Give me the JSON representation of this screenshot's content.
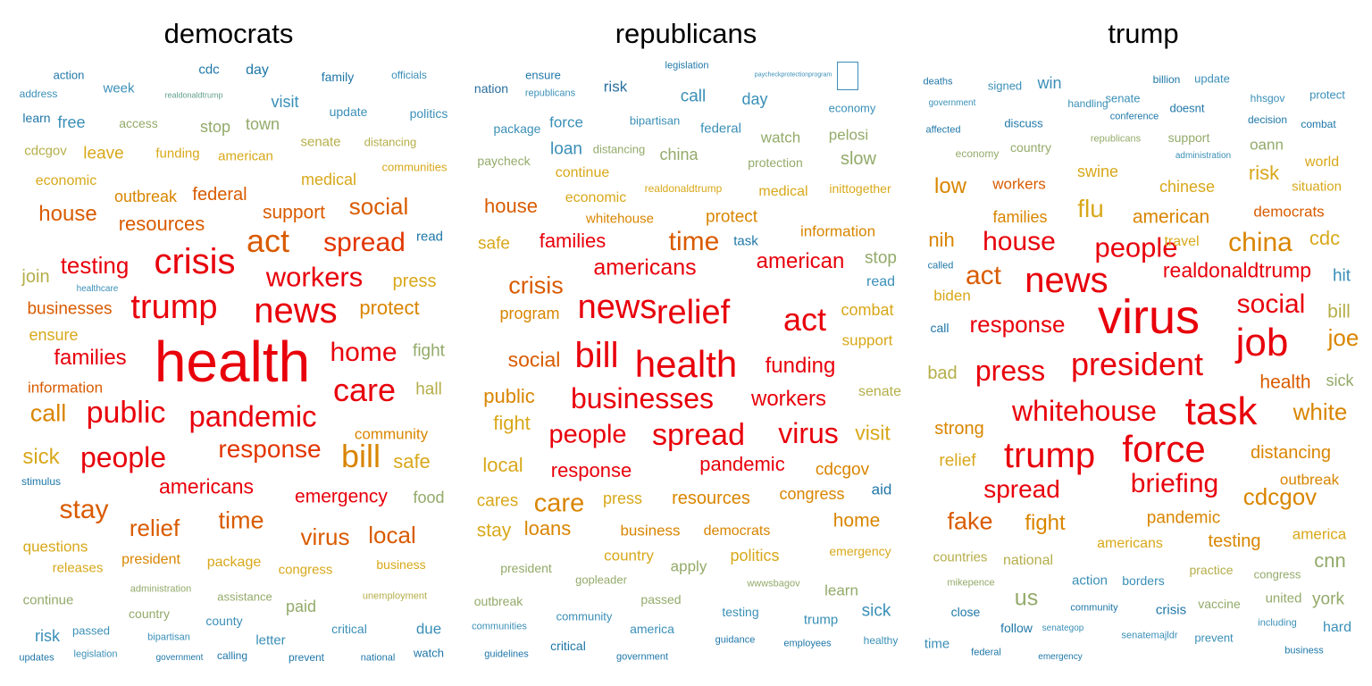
{
  "palette": [
    "#e8000b",
    "#e23500",
    "#d95b00",
    "#d98500",
    "#d8a81a",
    "#b5ae4a",
    "#93aa6a",
    "#63a08f",
    "#3a8fb7",
    "#1f77a8",
    "#2a6f9e"
  ],
  "panels": [
    {
      "title": "democrats",
      "words": [
        {
          "t": "action",
          "c": 9
        },
        {
          "t": "cdc",
          "c": 9
        },
        {
          "t": "day",
          "c": 9
        },
        {
          "t": "family",
          "c": 9
        },
        {
          "t": "officials",
          "c": 8
        },
        {
          "t": "address",
          "c": 8
        },
        {
          "t": "week",
          "c": 8
        },
        {
          "t": "realdonaldtrump",
          "c": 7
        },
        {
          "t": "visit",
          "c": 8
        },
        {
          "t": "update",
          "c": 8
        },
        {
          "t": "politics",
          "c": 8
        },
        {
          "t": "learn",
          "c": 9
        },
        {
          "t": "free",
          "c": 8
        },
        {
          "t": "access",
          "c": 6
        },
        {
          "t": "stop",
          "c": 6
        },
        {
          "t": "town",
          "c": 6
        },
        {
          "t": "senate",
          "c": 5
        },
        {
          "t": "distancing",
          "c": 5
        },
        {
          "t": "cdcgov",
          "c": 5
        },
        {
          "t": "leave",
          "c": 4
        },
        {
          "t": "funding",
          "c": 4
        },
        {
          "t": "american",
          "c": 4
        },
        {
          "t": "communities",
          "c": 4
        },
        {
          "t": "economic",
          "c": 4
        },
        {
          "t": "medical",
          "c": 4
        },
        {
          "t": "outbreak",
          "c": 3
        },
        {
          "t": "federal",
          "c": 2
        },
        {
          "t": "house",
          "c": 2
        },
        {
          "t": "resources",
          "c": 2
        },
        {
          "t": "support",
          "c": 2
        },
        {
          "t": "social",
          "c": 2
        },
        {
          "t": "act",
          "c": 2
        },
        {
          "t": "spread",
          "c": 1
        },
        {
          "t": "read",
          "c": 9
        },
        {
          "t": "testing",
          "c": 0
        },
        {
          "t": "crisis",
          "c": 0
        },
        {
          "t": "join",
          "c": 5
        },
        {
          "t": "workers",
          "c": 0
        },
        {
          "t": "healthcare",
          "c": 8
        },
        {
          "t": "press",
          "c": 4
        },
        {
          "t": "trump",
          "c": 0
        },
        {
          "t": "news",
          "c": 0
        },
        {
          "t": "businesses",
          "c": 2
        },
        {
          "t": "protect",
          "c": 3
        },
        {
          "t": "ensure",
          "c": 4
        },
        {
          "t": "health",
          "c": 0
        },
        {
          "t": "home",
          "c": 0
        },
        {
          "t": "families",
          "c": 0
        },
        {
          "t": "fight",
          "c": 6
        },
        {
          "t": "information",
          "c": 2
        },
        {
          "t": "care",
          "c": 0
        },
        {
          "t": "hall",
          "c": 5
        },
        {
          "t": "call",
          "c": 3
        },
        {
          "t": "public",
          "c": 0
        },
        {
          "t": "pandemic",
          "c": 0
        },
        {
          "t": "community",
          "c": 3
        },
        {
          "t": "response",
          "c": 1
        },
        {
          "t": "sick",
          "c": 4
        },
        {
          "t": "people",
          "c": 0
        },
        {
          "t": "bill",
          "c": 3
        },
        {
          "t": "safe",
          "c": 4
        },
        {
          "t": "stimulus",
          "c": 9
        },
        {
          "t": "americans",
          "c": 0
        },
        {
          "t": "stay",
          "c": 2
        },
        {
          "t": "emergency",
          "c": 0
        },
        {
          "t": "food",
          "c": 6
        },
        {
          "t": "relief",
          "c": 2
        },
        {
          "t": "time",
          "c": 2
        },
        {
          "t": "questions",
          "c": 4
        },
        {
          "t": "virus",
          "c": 2
        },
        {
          "t": "local",
          "c": 2
        },
        {
          "t": "releases",
          "c": 4
        },
        {
          "t": "president",
          "c": 3
        },
        {
          "t": "package",
          "c": 4
        },
        {
          "t": "congress",
          "c": 4
        },
        {
          "t": "business",
          "c": 4
        },
        {
          "t": "administration",
          "c": 6
        },
        {
          "t": "assistance",
          "c": 6
        },
        {
          "t": "unemployment",
          "c": 5
        },
        {
          "t": "continue",
          "c": 6
        },
        {
          "t": "country",
          "c": 6
        },
        {
          "t": "paid",
          "c": 6
        },
        {
          "t": "county",
          "c": 8
        },
        {
          "t": "critical",
          "c": 8
        },
        {
          "t": "due",
          "c": 8
        },
        {
          "t": "risk",
          "c": 8
        },
        {
          "t": "passed",
          "c": 8
        },
        {
          "t": "bipartisan",
          "c": 8
        },
        {
          "t": "letter",
          "c": 8
        },
        {
          "t": "updates",
          "c": 9
        },
        {
          "t": "legislation",
          "c": 8
        },
        {
          "t": "government",
          "c": 9
        },
        {
          "t": "calling",
          "c": 9
        },
        {
          "t": "prevent",
          "c": 9
        },
        {
          "t": "national",
          "c": 9
        },
        {
          "t": "watch",
          "c": 9
        }
      ]
    },
    {
      "title": "republicans",
      "words": [
        {
          "t": "legislation",
          "c": 9
        },
        {
          "t": "ensure",
          "c": 9
        },
        {
          "t": "paycheckprotectionprogram",
          "c": 8
        },
        {
          "t": "nation",
          "c": 10
        },
        {
          "t": "republicans",
          "c": 8
        },
        {
          "t": "risk",
          "c": 10
        },
        {
          "t": "call",
          "c": 8
        },
        {
          "t": "day",
          "c": 8
        },
        {
          "t": "economy",
          "c": 8
        },
        {
          "t": "package",
          "c": 8
        },
        {
          "t": "force",
          "c": 8
        },
        {
          "t": "bipartisan",
          "c": 8
        },
        {
          "t": "federal",
          "c": 8
        },
        {
          "t": "watch",
          "c": 6
        },
        {
          "t": "pelosi",
          "c": 6
        },
        {
          "t": "loan",
          "c": 8
        },
        {
          "t": "distancing",
          "c": 6
        },
        {
          "t": "china",
          "c": 6
        },
        {
          "t": "slow",
          "c": 6
        },
        {
          "t": "paycheck",
          "c": 6
        },
        {
          "t": "protection",
          "c": 6
        },
        {
          "t": "continue",
          "c": 4
        },
        {
          "t": "realdonaldtrump",
          "c": 4
        },
        {
          "t": "medical",
          "c": 4
        },
        {
          "t": "inittogether",
          "c": 4
        },
        {
          "t": "economic",
          "c": 4
        },
        {
          "t": "house",
          "c": 2
        },
        {
          "t": "whitehouse",
          "c": 3
        },
        {
          "t": "protect",
          "c": 3
        },
        {
          "t": "information",
          "c": 3
        },
        {
          "t": "time",
          "c": 2
        },
        {
          "t": "task",
          "c": 9
        },
        {
          "t": "safe",
          "c": 4
        },
        {
          "t": "families",
          "c": 0
        },
        {
          "t": "stop",
          "c": 6
        },
        {
          "t": "american",
          "c": 0
        },
        {
          "t": "americans",
          "c": 0
        },
        {
          "t": "read",
          "c": 8
        },
        {
          "t": "crisis",
          "c": 2
        },
        {
          "t": "combat",
          "c": 4
        },
        {
          "t": "program",
          "c": 3
        },
        {
          "t": "news",
          "c": 0
        },
        {
          "t": "relief",
          "c": 0
        },
        {
          "t": "act",
          "c": 0
        },
        {
          "t": "support",
          "c": 4
        },
        {
          "t": "social",
          "c": 2
        },
        {
          "t": "bill",
          "c": 0
        },
        {
          "t": "health",
          "c": 0
        },
        {
          "t": "funding",
          "c": 0
        },
        {
          "t": "public",
          "c": 3
        },
        {
          "t": "businesses",
          "c": 0
        },
        {
          "t": "workers",
          "c": 0
        },
        {
          "t": "senate",
          "c": 5
        },
        {
          "t": "fight",
          "c": 4
        },
        {
          "t": "people",
          "c": 0
        },
        {
          "t": "spread",
          "c": 0
        },
        {
          "t": "virus",
          "c": 0
        },
        {
          "t": "visit",
          "c": 4
        },
        {
          "t": "local",
          "c": 4
        },
        {
          "t": "response",
          "c": 0
        },
        {
          "t": "pandemic",
          "c": 0
        },
        {
          "t": "cdcgov",
          "c": 3
        },
        {
          "t": "aid",
          "c": 9
        },
        {
          "t": "cares",
          "c": 4
        },
        {
          "t": "care",
          "c": 3
        },
        {
          "t": "press",
          "c": 4
        },
        {
          "t": "resources",
          "c": 3
        },
        {
          "t": "congress",
          "c": 3
        },
        {
          "t": "home",
          "c": 3
        },
        {
          "t": "stay",
          "c": 4
        },
        {
          "t": "loans",
          "c": 3
        },
        {
          "t": "business",
          "c": 3
        },
        {
          "t": "democrats",
          "c": 3
        },
        {
          "t": "country",
          "c": 4
        },
        {
          "t": "politics",
          "c": 4
        },
        {
          "t": "emergency",
          "c": 4
        },
        {
          "t": "president",
          "c": 6
        },
        {
          "t": "apply",
          "c": 6
        },
        {
          "t": "gopleader",
          "c": 6
        },
        {
          "t": "wwwsbagov",
          "c": 6
        },
        {
          "t": "learn",
          "c": 6
        },
        {
          "t": "outbreak",
          "c": 6
        },
        {
          "t": "passed",
          "c": 6
        },
        {
          "t": "sick",
          "c": 8
        },
        {
          "t": "communities",
          "c": 8
        },
        {
          "t": "community",
          "c": 8
        },
        {
          "t": "america",
          "c": 8
        },
        {
          "t": "testing",
          "c": 8
        },
        {
          "t": "trump",
          "c": 8
        },
        {
          "t": "critical",
          "c": 9
        },
        {
          "t": "guidance",
          "c": 9
        },
        {
          "t": "employees",
          "c": 9
        },
        {
          "t": "healthy",
          "c": 8
        },
        {
          "t": "guidelines",
          "c": 9
        },
        {
          "t": "government",
          "c": 9
        }
      ]
    },
    {
      "title": "trump",
      "words": [
        {
          "t": "deaths",
          "c": 9
        },
        {
          "t": "signed",
          "c": 8
        },
        {
          "t": "win",
          "c": 8
        },
        {
          "t": "billion",
          "c": 9
        },
        {
          "t": "update",
          "c": 8
        },
        {
          "t": "government",
          "c": 8
        },
        {
          "t": "handling",
          "c": 8
        },
        {
          "t": "senate",
          "c": 8
        },
        {
          "t": "hhsgov",
          "c": 8
        },
        {
          "t": "protect",
          "c": 8
        },
        {
          "t": "affected",
          "c": 9
        },
        {
          "t": "discuss",
          "c": 9
        },
        {
          "t": "conference",
          "c": 9
        },
        {
          "t": "doesnt",
          "c": 9
        },
        {
          "t": "decision",
          "c": 9
        },
        {
          "t": "combat",
          "c": 9
        },
        {
          "t": "economy",
          "c": 6
        },
        {
          "t": "country",
          "c": 6
        },
        {
          "t": "republicans",
          "c": 6
        },
        {
          "t": "support",
          "c": 6
        },
        {
          "t": "oann",
          "c": 6
        },
        {
          "t": "administration",
          "c": 8
        },
        {
          "t": "swine",
          "c": 4
        },
        {
          "t": "risk",
          "c": 4
        },
        {
          "t": "world",
          "c": 4
        },
        {
          "t": "low",
          "c": 3
        },
        {
          "t": "workers",
          "c": 2
        },
        {
          "t": "chinese",
          "c": 4
        },
        {
          "t": "situation",
          "c": 4
        },
        {
          "t": "flu",
          "c": 4
        },
        {
          "t": "families",
          "c": 3
        },
        {
          "t": "american",
          "c": 3
        },
        {
          "t": "democrats",
          "c": 2
        },
        {
          "t": "nih",
          "c": 3
        },
        {
          "t": "house",
          "c": 0
        },
        {
          "t": "people",
          "c": 0
        },
        {
          "t": "travel",
          "c": 4
        },
        {
          "t": "china",
          "c": 3
        },
        {
          "t": "cdc",
          "c": 4
        },
        {
          "t": "act",
          "c": 2
        },
        {
          "t": "news",
          "c": 0
        },
        {
          "t": "realdonaldtrump",
          "c": 0
        },
        {
          "t": "called",
          "c": 9
        },
        {
          "t": "hit",
          "c": 8
        },
        {
          "t": "biden",
          "c": 4
        },
        {
          "t": "virus",
          "c": 0
        },
        {
          "t": "social",
          "c": 0
        },
        {
          "t": "bill",
          "c": 5
        },
        {
          "t": "call",
          "c": 9
        },
        {
          "t": "response",
          "c": 0
        },
        {
          "t": "job",
          "c": 0
        },
        {
          "t": "joe",
          "c": 3
        },
        {
          "t": "press",
          "c": 0
        },
        {
          "t": "president",
          "c": 0
        },
        {
          "t": "bad",
          "c": 5
        },
        {
          "t": "health",
          "c": 2
        },
        {
          "t": "sick",
          "c": 6
        },
        {
          "t": "task",
          "c": 0
        },
        {
          "t": "whitehouse",
          "c": 0
        },
        {
          "t": "white",
          "c": 3
        },
        {
          "t": "strong",
          "c": 3
        },
        {
          "t": "force",
          "c": 0
        },
        {
          "t": "trump",
          "c": 0
        },
        {
          "t": "relief",
          "c": 4
        },
        {
          "t": "distancing",
          "c": 3
        },
        {
          "t": "briefing",
          "c": 0
        },
        {
          "t": "outbreak",
          "c": 3
        },
        {
          "t": "spread",
          "c": 0
        },
        {
          "t": "cdcgov",
          "c": 3
        },
        {
          "t": "fake",
          "c": 2
        },
        {
          "t": "fight",
          "c": 3
        },
        {
          "t": "pandemic",
          "c": 3
        },
        {
          "t": "americans",
          "c": 4
        },
        {
          "t": "testing",
          "c": 3
        },
        {
          "t": "america",
          "c": 4
        },
        {
          "t": "countries",
          "c": 5
        },
        {
          "t": "national",
          "c": 5
        },
        {
          "t": "practice",
          "c": 5
        },
        {
          "t": "congress",
          "c": 6
        },
        {
          "t": "cnn",
          "c": 6
        },
        {
          "t": "us",
          "c": 6
        },
        {
          "t": "mikepence",
          "c": 6
        },
        {
          "t": "action",
          "c": 8
        },
        {
          "t": "borders",
          "c": 8
        },
        {
          "t": "vaccine",
          "c": 6
        },
        {
          "t": "united",
          "c": 6
        },
        {
          "t": "york",
          "c": 6
        },
        {
          "t": "close",
          "c": 9
        },
        {
          "t": "community",
          "c": 9
        },
        {
          "t": "crisis",
          "c": 9
        },
        {
          "t": "follow",
          "c": 9
        },
        {
          "t": "senategop",
          "c": 8
        },
        {
          "t": "senatemajldr",
          "c": 8
        },
        {
          "t": "prevent",
          "c": 8
        },
        {
          "t": "including",
          "c": 8
        },
        {
          "t": "hard",
          "c": 8
        },
        {
          "t": "time",
          "c": 8
        },
        {
          "t": "federal",
          "c": 9
        },
        {
          "t": "emergency",
          "c": 9
        },
        {
          "t": "business",
          "c": 9
        }
      ]
    }
  ]
}
